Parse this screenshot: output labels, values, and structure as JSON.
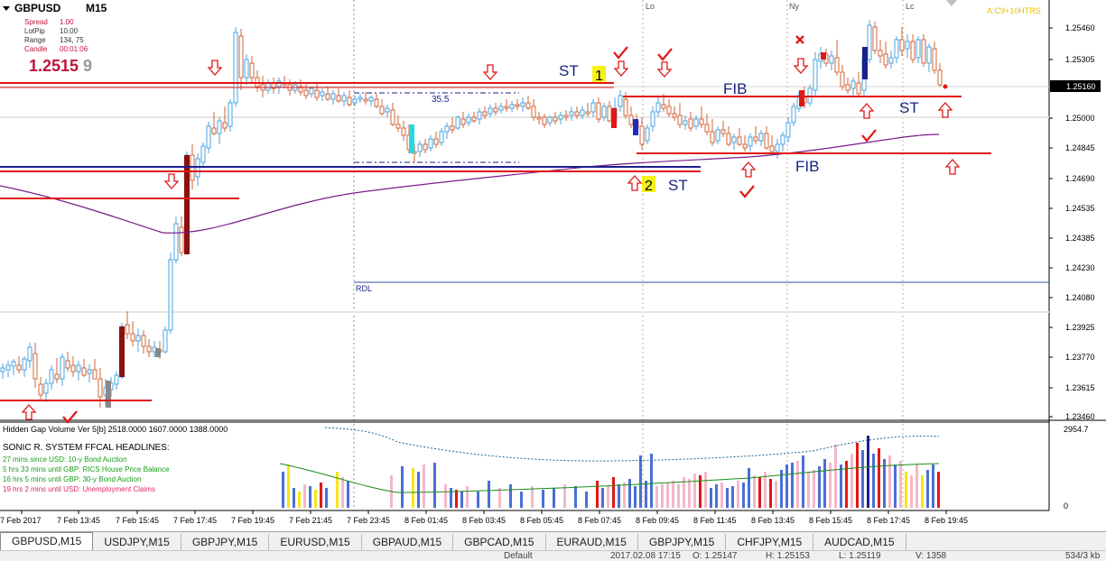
{
  "symbol": "GBPUSD",
  "timeframe": "M15",
  "info_panel": {
    "spread_label": "Spread",
    "spread_value": "1.00",
    "lotpip_label": "LotPip",
    "lotpip_value": "10.00",
    "range_label": "Range",
    "range_value": "134, 75",
    "candle_label": "Candle",
    "candle_value": "00:01:06",
    "price_main": "1.2515",
    "price_last_digit": "9"
  },
  "top_right_label": "A:C9+10HTRS",
  "price_axis": {
    "labels": [
      "1.25460",
      "1.25305",
      "1.25000",
      "1.24845",
      "1.24690",
      "1.24535",
      "1.24385",
      "1.24230",
      "1.24080",
      "1.23925",
      "1.23770",
      "1.23615",
      "1.23460"
    ],
    "current_price": "1.25160"
  },
  "time_axis": {
    "labels": [
      "7 Feb 2017",
      "7 Feb 13:45",
      "7 Feb 15:45",
      "7 Feb 17:45",
      "7 Feb 19:45",
      "7 Feb 21:45",
      "7 Feb 23:45",
      "8 Feb 01:45",
      "8 Feb 03:45",
      "8 Feb 05:45",
      "8 Feb 07:45",
      "8 Feb 09:45",
      "8 Feb 11:45",
      "8 Feb 13:45",
      "8 Feb 15:45",
      "8 Feb 17:45",
      "8 Feb 19:45"
    ]
  },
  "session_labels": [
    "Lo",
    "Ny",
    "Lc"
  ],
  "annotations": {
    "st": "ST",
    "fib": "FIB",
    "num_1": "1",
    "num_2": "2",
    "range_value": "35.5",
    "rdl": "RDL"
  },
  "indicator": {
    "header": "Hidden Gap Volume Ver 5[b] 2518.0000 1607.0000 1388.0000",
    "scale_top": "2954.7",
    "scale_bottom": "0"
  },
  "headlines": {
    "title": "SONIC R. SYSTEM  FFCAL HEADLINES:",
    "items": [
      {
        "text": "27 mins since USD: 10-y Bond Auction",
        "color": "#1a9c1a"
      },
      {
        "text": "5 hrs 33 mins until GBP: RICS House Price Balance",
        "color": "#1a9c1a"
      },
      {
        "text": "16 hrs 5 mins until GBP: 30-y Bond Auction",
        "color": "#1a9c1a"
      },
      {
        "text": "19 hrs 2 mins until USD: Unemployment Claims",
        "color": "#e0246e"
      }
    ]
  },
  "tabs": [
    "GBPUSD,M15",
    "USDJPY,M15",
    "GBPJPY,M15",
    "EURUSD,M15",
    "GBPAUD,M15",
    "GBPCAD,M15",
    "EURAUD,M15",
    "GBPJPY,M15",
    "CHFJPY,M15",
    "AUDCAD,M15"
  ],
  "status_bar": [
    "Default",
    "2017.02.08 17:15",
    "O: 1.25147",
    "H: 1.25153",
    "L: 1.25119",
    "V: 1358",
    "534/3 kb"
  ],
  "colors": {
    "bull": "#4aa3e0",
    "bear": "#d2663a",
    "resistance": "#e01818",
    "support_blue": "#1a1f8c",
    "ma": "#7a1a8c",
    "text_blue": "#16227a",
    "arrow": "#e01818",
    "check": "#e01818"
  }
}
